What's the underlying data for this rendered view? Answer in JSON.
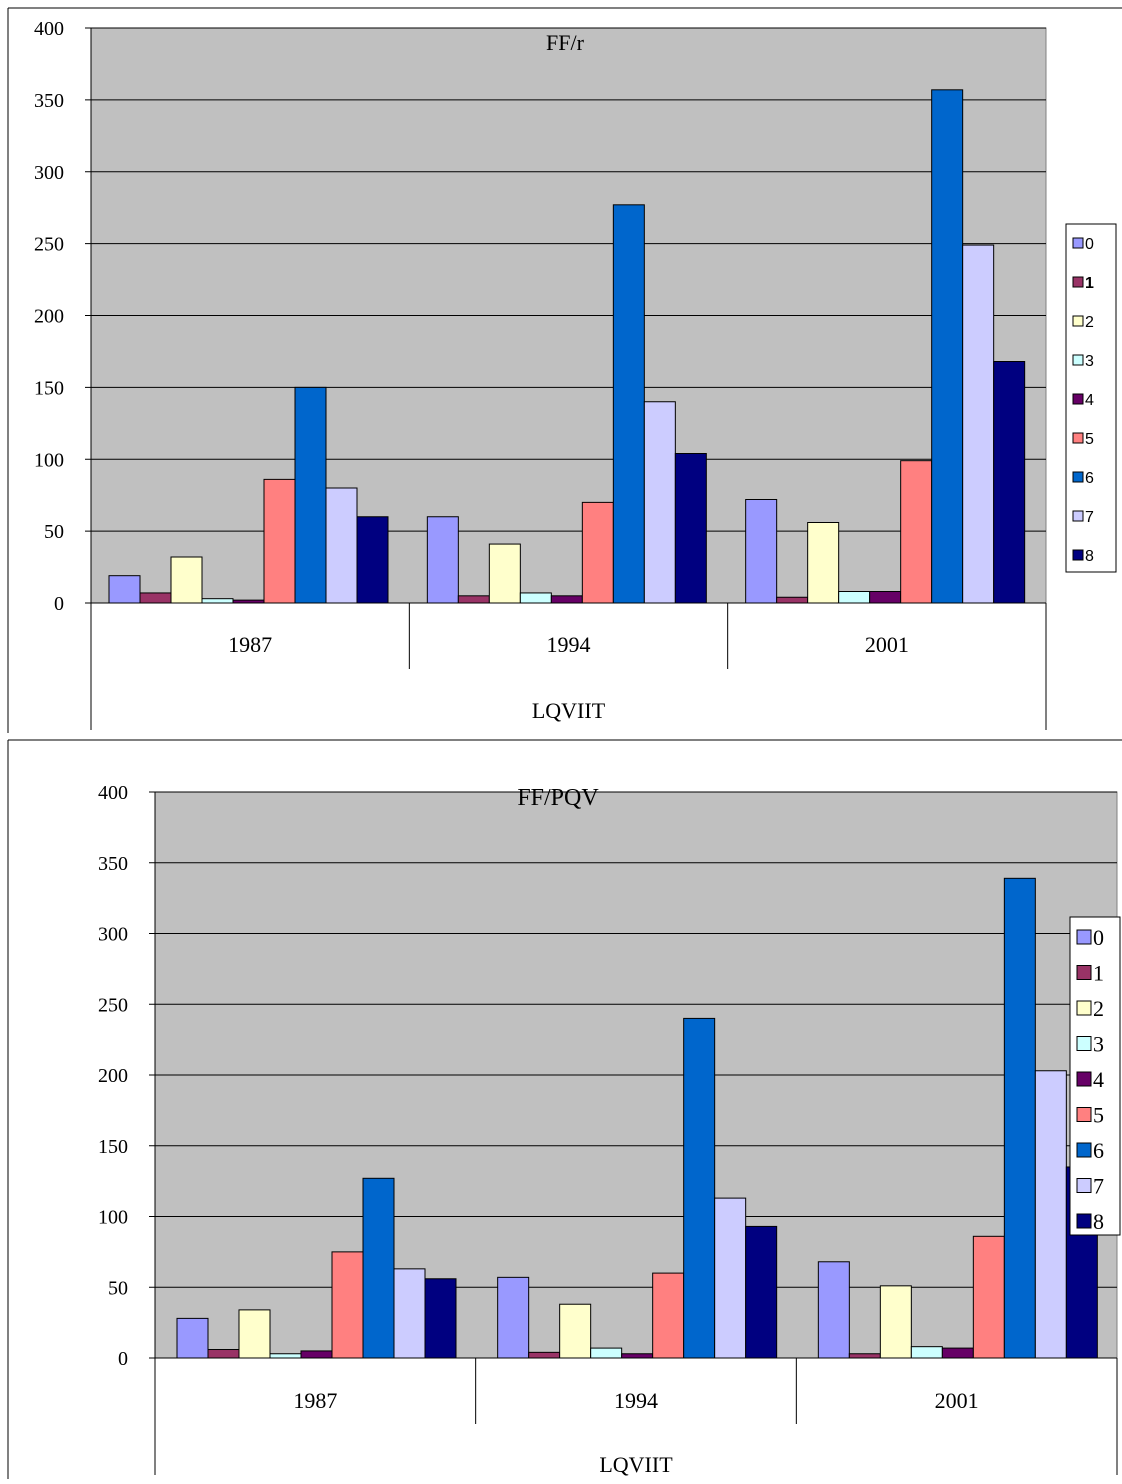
{
  "colors": {
    "plot_background": "#c0c0c0",
    "series": [
      "#9999ff",
      "#993366",
      "#ffffcc",
      "#ccffff",
      "#660066",
      "#ff8080",
      "#0066cc",
      "#ccccff",
      "#000080"
    ]
  },
  "chart_data": [
    {
      "type": "bar",
      "title": "FF/r",
      "xlabel": "LQVIIT",
      "ylabel": "",
      "ylim": [
        0,
        400
      ],
      "yticks": [
        "0",
        "50",
        "100",
        "150",
        "200",
        "250",
        "300",
        "350",
        "400"
      ],
      "categories": [
        "1987",
        "1994",
        "2001"
      ],
      "grid": true,
      "legend_position": "right",
      "series": [
        {
          "name": "0",
          "values": [
            19,
            60,
            72
          ]
        },
        {
          "name": "1",
          "values": [
            7,
            5,
            4
          ]
        },
        {
          "name": "2",
          "values": [
            32,
            41,
            56
          ]
        },
        {
          "name": "3",
          "values": [
            3,
            7,
            8
          ]
        },
        {
          "name": "4",
          "values": [
            2,
            5,
            8
          ]
        },
        {
          "name": "5",
          "values": [
            86,
            70,
            99
          ]
        },
        {
          "name": "6",
          "values": [
            150,
            277,
            357
          ]
        },
        {
          "name": "7",
          "values": [
            80,
            140,
            249
          ]
        },
        {
          "name": "8",
          "values": [
            60,
            104,
            168
          ]
        }
      ]
    },
    {
      "type": "bar",
      "title": "FF/PQV",
      "xlabel": "LQVIIT",
      "ylabel": "",
      "ylim": [
        0,
        400
      ],
      "yticks": [
        "0",
        "50",
        "100",
        "150",
        "200",
        "250",
        "300",
        "350",
        "400"
      ],
      "categories": [
        "1987",
        "1994",
        "2001"
      ],
      "grid": true,
      "legend_position": "right",
      "series": [
        {
          "name": "0",
          "values": [
            28,
            57,
            68
          ]
        },
        {
          "name": "1",
          "values": [
            6,
            4,
            3
          ]
        },
        {
          "name": "2",
          "values": [
            34,
            38,
            51
          ]
        },
        {
          "name": "3",
          "values": [
            3,
            7,
            8
          ]
        },
        {
          "name": "4",
          "values": [
            5,
            3,
            7
          ]
        },
        {
          "name": "5",
          "values": [
            75,
            60,
            86
          ]
        },
        {
          "name": "6",
          "values": [
            127,
            240,
            339
          ]
        },
        {
          "name": "7",
          "values": [
            63,
            113,
            203
          ]
        },
        {
          "name": "8",
          "values": [
            56,
            93,
            135
          ]
        }
      ]
    }
  ]
}
